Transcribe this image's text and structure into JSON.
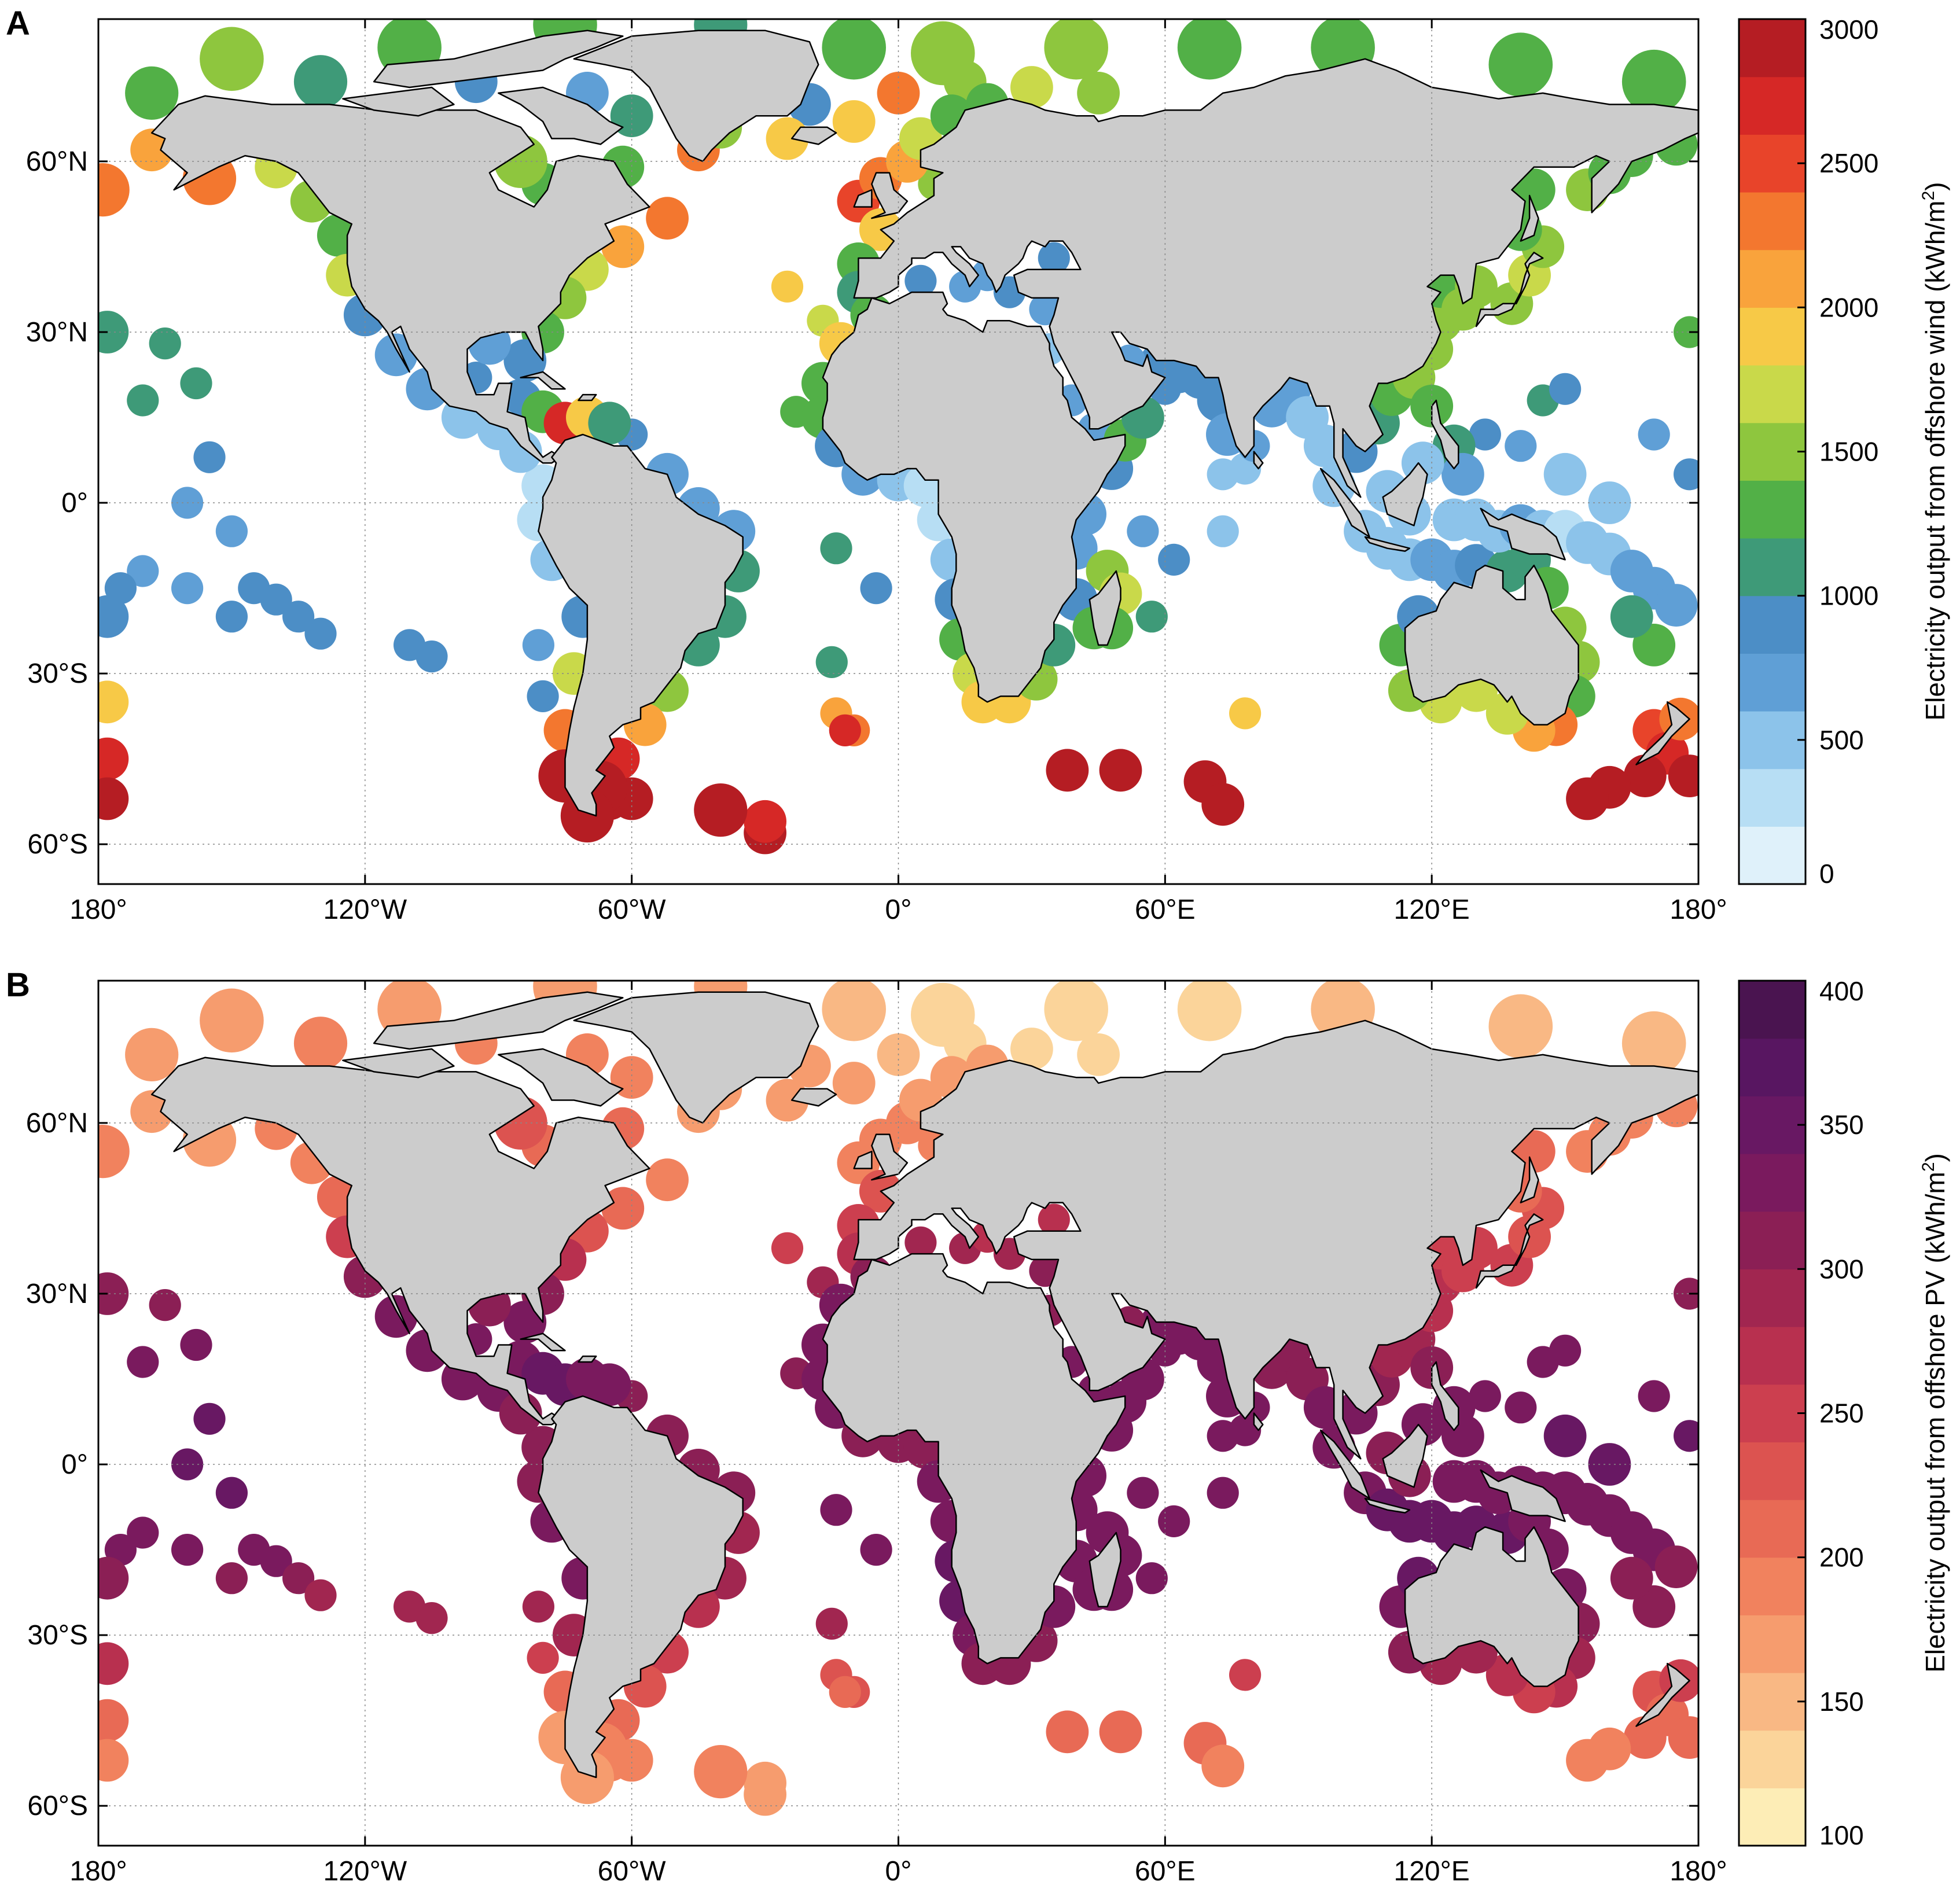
{
  "panels": [
    {
      "letter": "A",
      "colorbar": {
        "label": "Electricity output from offshore wind (kWh/m",
        "label_sup": "2",
        "label_tail": ")",
        "ticks": [
          "0",
          "500",
          "1000",
          "1500",
          "2000",
          "2500",
          "3000"
        ],
        "vmin": 0,
        "vmax": 3000,
        "colors": [
          "#dff1fa",
          "#b7def4",
          "#8cc3ea",
          "#5f9fd6",
          "#4c8ec6",
          "#3e9a78",
          "#52b047",
          "#8ec63e",
          "#c9d94a",
          "#f7c947",
          "#f9a33c",
          "#f3772f",
          "#e8442a",
          "#d62826",
          "#b51d23"
        ]
      }
    },
    {
      "letter": "B",
      "colorbar": {
        "label": "Electricity output from offshore PV (kWh/m",
        "label_sup": "2",
        "label_tail": ")",
        "ticks": [
          "100",
          "150",
          "200",
          "250",
          "300",
          "350",
          "400"
        ],
        "vmin": 100,
        "vmax": 400,
        "colors": [
          "#fdedb6",
          "#fbd49a",
          "#f9b884",
          "#f69c6e",
          "#f1825e",
          "#e86a55",
          "#dc5350",
          "#cc3f4f",
          "#b8304f",
          "#a12650",
          "#8b1f55",
          "#7a1a5e",
          "#681863",
          "#581661",
          "#4a1450"
        ]
      }
    }
  ],
  "axes": {
    "x_tick_labels": [
      "180°",
      "120°W",
      "60°W",
      "0°",
      "60°E",
      "120°E",
      "180°"
    ],
    "y_tick_labels": [
      "60°N",
      "30°N",
      "0°",
      "30°S",
      "60°S"
    ],
    "x_ticks_deg": [
      -180,
      -120,
      -60,
      0,
      60,
      120,
      180
    ],
    "y_ticks_deg": [
      60,
      30,
      0,
      -30,
      -60
    ],
    "lat_range": [
      -67,
      85
    ],
    "lon_range": [
      -180,
      180
    ],
    "grid": true
  },
  "map": {
    "land_color": "#cccccc",
    "ocean_color": "#ffffff"
  }
}
